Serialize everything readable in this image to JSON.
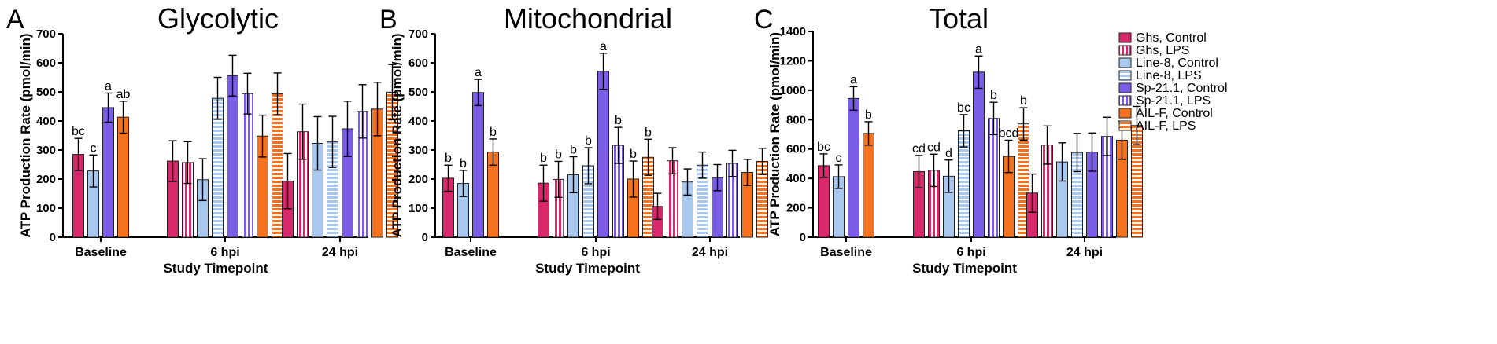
{
  "series_styles": [
    {
      "name": "Ghs, Control",
      "color": "#d6286a",
      "hatch": null
    },
    {
      "name": "Ghs, LPS",
      "color": "#d6286a",
      "hatch": "vertical"
    },
    {
      "name": "Line-8, Control",
      "color": "#a9c8f0",
      "hatch": null
    },
    {
      "name": "Line-8, LPS",
      "color": "#a9c8f0",
      "hatch": "horizontal"
    },
    {
      "name": "Sp-21.1, Control",
      "color": "#7b5ce6",
      "hatch": null
    },
    {
      "name": "Sp-21.1, LPS",
      "color": "#7b5ce6",
      "hatch": "vertical"
    },
    {
      "name": "AIL-F, Control",
      "color": "#f5731e",
      "hatch": null
    },
    {
      "name": "AIL-F, LPS",
      "color": "#f5731e",
      "hatch": "horizontal"
    }
  ],
  "chart_data": [
    {
      "type": "bar",
      "panel": "A",
      "title": "Glycolytic",
      "xlabel": "Study Timepoint",
      "ylabel": "ATP Production Rate (pmol/min)",
      "ylim": [
        0,
        700
      ],
      "yticks": [
        0,
        100,
        200,
        300,
        400,
        500,
        600,
        700
      ],
      "categories": [
        "Baseline",
        "6 hpi",
        "24 hpi"
      ],
      "series": [
        {
          "name": "Ghs, Control",
          "values": [
            285,
            262,
            193
          ],
          "errors": [
            55,
            70,
            95
          ],
          "labels": [
            "bc",
            "",
            ""
          ]
        },
        {
          "name": "Ghs, LPS",
          "values": [
            null,
            257,
            363
          ],
          "errors": [
            null,
            72,
            95
          ],
          "labels": [
            "",
            "",
            ""
          ]
        },
        {
          "name": "Line-8, Control",
          "values": [
            228,
            198,
            323
          ],
          "errors": [
            55,
            72,
            92
          ],
          "labels": [
            "c",
            "",
            ""
          ]
        },
        {
          "name": "Line-8, LPS",
          "values": [
            null,
            478,
            328
          ],
          "errors": [
            null,
            72,
            88
          ],
          "labels": [
            "",
            "",
            ""
          ]
        },
        {
          "name": "Sp-21.1, Control",
          "values": [
            446,
            556,
            373
          ],
          "errors": [
            50,
            70,
            95
          ],
          "labels": [
            "a",
            "",
            ""
          ]
        },
        {
          "name": "Sp-21.1, LPS",
          "values": [
            null,
            494,
            433
          ],
          "errors": [
            null,
            70,
            92
          ],
          "labels": [
            "",
            "",
            ""
          ]
        },
        {
          "name": "AIL-F, Control",
          "values": [
            413,
            348,
            441
          ],
          "errors": [
            55,
            72,
            92
          ],
          "labels": [
            "ab",
            "",
            ""
          ]
        },
        {
          "name": "AIL-F, LPS",
          "values": [
            null,
            493,
            499
          ],
          "errors": [
            null,
            72,
            95
          ],
          "labels": [
            "",
            "",
            ""
          ]
        }
      ]
    },
    {
      "type": "bar",
      "panel": "B",
      "title": "Mitochondrial",
      "xlabel": "Study Timepoint",
      "ylabel": "ATP Production Rate (pmol/min)",
      "ylim": [
        0,
        700
      ],
      "yticks": [
        0,
        100,
        200,
        300,
        400,
        500,
        600,
        700
      ],
      "categories": [
        "Baseline",
        "6 hpi",
        "24 hpi"
      ],
      "series": [
        {
          "name": "Ghs, Control",
          "values": [
            203,
            186,
            106
          ],
          "errors": [
            45,
            62,
            45
          ],
          "labels": [
            "b",
            "b",
            ""
          ]
        },
        {
          "name": "Ghs, LPS",
          "values": [
            null,
            199,
            263
          ],
          "errors": [
            null,
            62,
            45
          ],
          "labels": [
            "",
            "b",
            ""
          ]
        },
        {
          "name": "Line-8, Control",
          "values": [
            185,
            215,
            190
          ],
          "errors": [
            45,
            62,
            45
          ],
          "labels": [
            "b",
            "b",
            ""
          ]
        },
        {
          "name": "Line-8, LPS",
          "values": [
            null,
            246,
            248
          ],
          "errors": [
            null,
            62,
            45
          ],
          "labels": [
            "",
            "b",
            ""
          ]
        },
        {
          "name": "Sp-21.1, Control",
          "values": [
            498,
            571,
            205
          ],
          "errors": [
            45,
            62,
            45
          ],
          "labels": [
            "a",
            "a",
            ""
          ]
        },
        {
          "name": "Sp-21.1, LPS",
          "values": [
            null,
            316,
            254
          ],
          "errors": [
            null,
            62,
            45
          ],
          "labels": [
            "",
            "b",
            ""
          ]
        },
        {
          "name": "AIL-F, Control",
          "values": [
            293,
            200,
            223
          ],
          "errors": [
            45,
            62,
            45
          ],
          "labels": [
            "b",
            "b",
            ""
          ]
        },
        {
          "name": "AIL-F, LPS",
          "values": [
            null,
            275,
            261
          ],
          "errors": [
            null,
            62,
            45
          ],
          "labels": [
            "",
            "b",
            ""
          ]
        }
      ]
    },
    {
      "type": "bar",
      "panel": "C",
      "title": "Total",
      "xlabel": "Study Timepoint",
      "ylabel": "ATP Production Rate (pmol/min)",
      "ylim": [
        0,
        1400
      ],
      "yticks": [
        0,
        200,
        400,
        600,
        800,
        1000,
        1200,
        1400
      ],
      "categories": [
        "Baseline",
        "6 hpi",
        "24 hpi"
      ],
      "series": [
        {
          "name": "Ghs, Control",
          "values": [
            487,
            446,
            300
          ],
          "errors": [
            80,
            110,
            130
          ],
          "labels": [
            "bc",
            "cd",
            ""
          ]
        },
        {
          "name": "Ghs, LPS",
          "values": [
            null,
            455,
            627
          ],
          "errors": [
            null,
            110,
            130
          ],
          "labels": [
            "",
            "cd",
            ""
          ]
        },
        {
          "name": "Line-8, Control",
          "values": [
            412,
            415,
            512
          ],
          "errors": [
            80,
            110,
            130
          ],
          "labels": [
            "c",
            "d",
            ""
          ]
        },
        {
          "name": "Line-8, LPS",
          "values": [
            null,
            724,
            576
          ],
          "errors": [
            null,
            110,
            130
          ],
          "labels": [
            "",
            "bc",
            ""
          ]
        },
        {
          "name": "Sp-21.1, Control",
          "values": [
            944,
            1123,
            579
          ],
          "errors": [
            80,
            110,
            130
          ],
          "labels": [
            "a",
            "a",
            ""
          ]
        },
        {
          "name": "Sp-21.1, LPS",
          "values": [
            null,
            808,
            686
          ],
          "errors": [
            null,
            110,
            130
          ],
          "labels": [
            "",
            "b",
            ""
          ]
        },
        {
          "name": "AIL-F, Control",
          "values": [
            706,
            550,
            660
          ],
          "errors": [
            80,
            110,
            130
          ],
          "labels": [
            "b",
            "bcd",
            ""
          ]
        },
        {
          "name": "AIL-F, LPS",
          "values": [
            null,
            771,
            760
          ],
          "errors": [
            null,
            110,
            130
          ],
          "labels": [
            "",
            "b",
            ""
          ]
        }
      ]
    }
  ]
}
